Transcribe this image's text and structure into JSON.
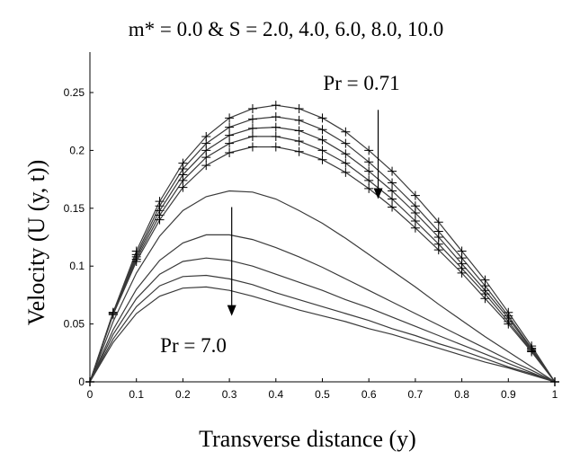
{
  "chart_data": {
    "type": "line",
    "title": "m* = 0.0 & S = 2.0, 4.0, 6.0, 8.0, 10.0",
    "xlabel": "Transverse distance (y)",
    "ylabel": "Velocity (U (y, t))",
    "xlim": [
      0,
      1
    ],
    "ylim": [
      0,
      0.25
    ],
    "grid": false,
    "x_ticks": [
      "0",
      "0.1",
      "0.2",
      "0.3",
      "0.4",
      "0.5",
      "0.6",
      "0.7",
      "0.8",
      "0.9",
      "1"
    ],
    "y_ticks": [
      "0",
      "0.05",
      "0.1",
      "0.15",
      "0.2",
      "0.25"
    ],
    "annotations": [
      {
        "text": "Pr = 0.71",
        "arrow_x": 0.62,
        "arrow_from": 0.235,
        "arrow_to": 0.158
      },
      {
        "text": "Pr = 7.0",
        "arrow_x": 0.305,
        "arrow_from": 0.151,
        "arrow_to": 0.057
      }
    ],
    "x": [
      0,
      0.05,
      0.1,
      0.15,
      0.2,
      0.25,
      0.3,
      0.35,
      0.4,
      0.45,
      0.5,
      0.55,
      0.6,
      0.65,
      0.7,
      0.75,
      0.8,
      0.85,
      0.9,
      0.95,
      1.0
    ],
    "series": [
      {
        "group": "Pr = 0.71",
        "marker": "plus",
        "values": [
          0,
          0.06,
          0.113,
          0.156,
          0.189,
          0.212,
          0.228,
          0.236,
          0.239,
          0.236,
          0.228,
          0.216,
          0.2,
          0.182,
          0.161,
          0.138,
          0.113,
          0.088,
          0.06,
          0.031,
          0
        ]
      },
      {
        "group": "Pr = 0.71",
        "marker": "plus",
        "values": [
          0,
          0.06,
          0.11,
          0.152,
          0.184,
          0.206,
          0.22,
          0.227,
          0.229,
          0.226,
          0.218,
          0.206,
          0.19,
          0.172,
          0.152,
          0.13,
          0.107,
          0.083,
          0.057,
          0.029,
          0
        ]
      },
      {
        "group": "Pr = 0.71",
        "marker": "plus",
        "values": [
          0,
          0.059,
          0.108,
          0.148,
          0.179,
          0.2,
          0.213,
          0.219,
          0.22,
          0.217,
          0.209,
          0.197,
          0.182,
          0.165,
          0.146,
          0.125,
          0.102,
          0.079,
          0.055,
          0.028,
          0
        ]
      },
      {
        "group": "Pr = 0.71",
        "marker": "plus",
        "values": [
          0,
          0.059,
          0.106,
          0.144,
          0.174,
          0.194,
          0.206,
          0.212,
          0.212,
          0.208,
          0.2,
          0.189,
          0.174,
          0.158,
          0.139,
          0.119,
          0.098,
          0.076,
          0.052,
          0.027,
          0
        ]
      },
      {
        "group": "Pr = 0.71",
        "marker": "plus",
        "values": [
          0,
          0.058,
          0.104,
          0.14,
          0.168,
          0.187,
          0.198,
          0.203,
          0.203,
          0.199,
          0.192,
          0.181,
          0.167,
          0.151,
          0.133,
          0.114,
          0.094,
          0.072,
          0.05,
          0.026,
          0
        ]
      },
      {
        "group": "Pr = 7.0",
        "marker": "none",
        "values": [
          0,
          0.052,
          0.094,
          0.126,
          0.148,
          0.16,
          0.165,
          0.164,
          0.158,
          0.148,
          0.137,
          0.124,
          0.11,
          0.096,
          0.082,
          0.067,
          0.053,
          0.039,
          0.026,
          0.013,
          0
        ]
      },
      {
        "group": "Pr = 7.0",
        "marker": "none",
        "values": [
          0,
          0.045,
          0.08,
          0.105,
          0.12,
          0.127,
          0.127,
          0.123,
          0.116,
          0.108,
          0.099,
          0.089,
          0.079,
          0.069,
          0.059,
          0.049,
          0.039,
          0.029,
          0.019,
          0.01,
          0
        ]
      },
      {
        "group": "Pr = 7.0",
        "marker": "none",
        "values": [
          0,
          0.041,
          0.072,
          0.093,
          0.104,
          0.107,
          0.105,
          0.1,
          0.093,
          0.086,
          0.079,
          0.071,
          0.064,
          0.056,
          0.048,
          0.04,
          0.032,
          0.024,
          0.016,
          0.008,
          0
        ]
      },
      {
        "group": "Pr = 7.0",
        "marker": "none",
        "values": [
          0,
          0.037,
          0.065,
          0.083,
          0.091,
          0.092,
          0.089,
          0.084,
          0.077,
          0.071,
          0.065,
          0.059,
          0.053,
          0.046,
          0.04,
          0.033,
          0.027,
          0.02,
          0.013,
          0.007,
          0
        ]
      },
      {
        "group": "Pr = 7.0",
        "marker": "none",
        "values": [
          0,
          0.034,
          0.059,
          0.074,
          0.081,
          0.082,
          0.079,
          0.074,
          0.068,
          0.062,
          0.057,
          0.052,
          0.046,
          0.041,
          0.035,
          0.029,
          0.023,
          0.017,
          0.012,
          0.006,
          0
        ]
      }
    ],
    "line_color": "#3a3a3a",
    "marker_color": "#000000"
  }
}
